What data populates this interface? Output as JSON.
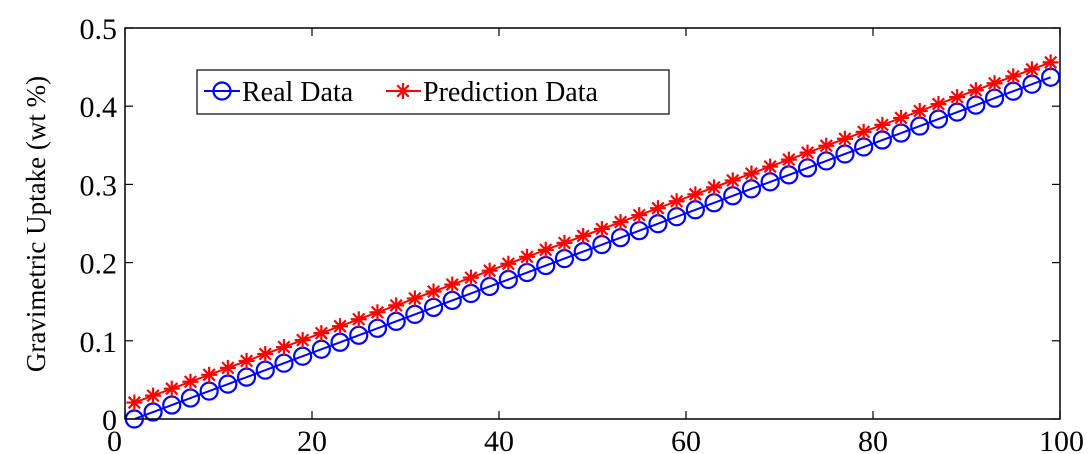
{
  "chart_data": {
    "type": "line",
    "title": "",
    "xlabel": "",
    "ylabel": "Gravimetric Uptake (wt %)",
    "xlim": [
      0,
      100
    ],
    "ylim": [
      0,
      0.5
    ],
    "x_ticks": [
      0,
      20,
      40,
      60,
      80,
      100
    ],
    "y_ticks": [
      0,
      0.1,
      0.2,
      0.3,
      0.4,
      0.5
    ],
    "x_tick_labels": [
      "0",
      "20",
      "40",
      "60",
      "80",
      "100"
    ],
    "y_tick_labels": [
      "0",
      "0.1",
      "0.2",
      "0.3",
      "0.4",
      "0.5"
    ],
    "grid": false,
    "legend_position": "top-left",
    "series": [
      {
        "name": "Real Data",
        "color": "#0000ff",
        "marker": "circle",
        "x_start": 1,
        "x_step": 2,
        "x_end": 99,
        "y_at_first": 0.0,
        "y_at_last": 0.437
      },
      {
        "name": "Prediction Data",
        "color": "#ff0000",
        "marker": "asterisk",
        "x_start": 1,
        "x_step": 2,
        "x_end": 99,
        "y_at_first": 0.021,
        "y_at_last": 0.456
      }
    ]
  }
}
